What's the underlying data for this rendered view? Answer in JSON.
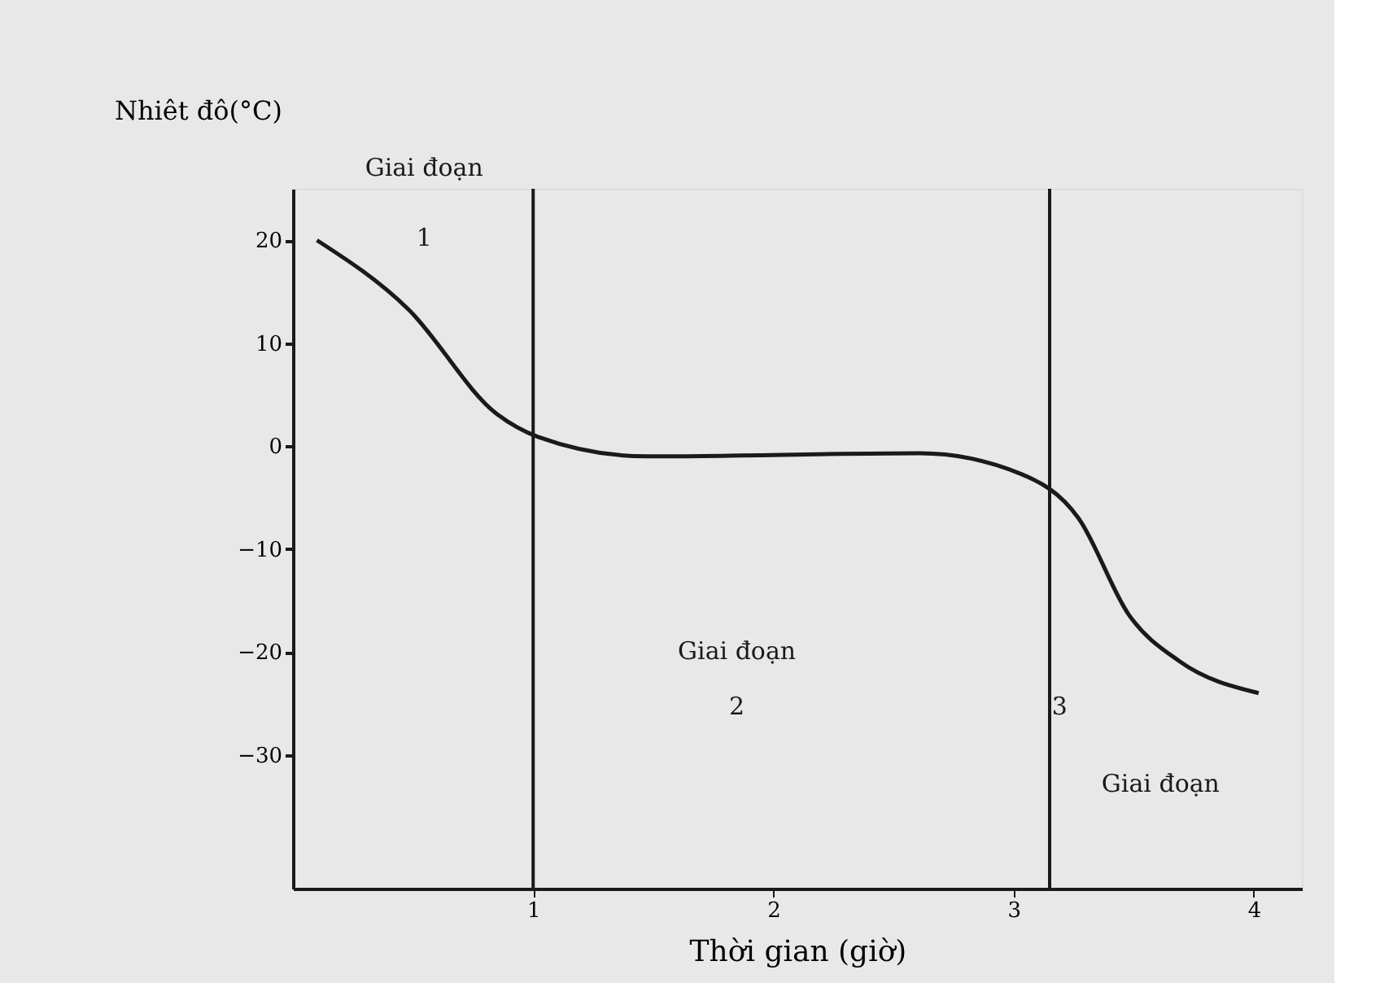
{
  "chart_data": {
    "type": "line",
    "ylabel": "Nhiêt đô(°C)",
    "xlabel": "Thời gian (giờ)",
    "x": [
      0.1,
      0.48,
      0.85,
      1.02,
      1.47,
      2.61,
      3.03,
      3.27,
      3.48,
      3.69,
      4.02
    ],
    "series": [
      {
        "color": "#1a1a1a",
        "values": [
          20,
          13.3,
          3.1,
          0.9,
          -1,
          -0.7,
          -2.7,
          -7,
          -16.4,
          -20.9,
          -24
        ]
      }
    ],
    "xlim": [
      0,
      4.2
    ],
    "ylim": [
      -43,
      25
    ],
    "xticks": [
      1,
      2,
      3,
      4
    ],
    "yticks": [
      20,
      10,
      0,
      -10,
      -20,
      -30
    ],
    "grid": false,
    "line_style": "solid",
    "marker": "none",
    "ref_lines": [
      {
        "axis": "x",
        "value": 1,
        "color": "#1a1a1a"
      },
      {
        "axis": "x",
        "value": 3.15,
        "color": "#1a1a1a"
      }
    ],
    "annotations": [
      "Giai đoạn",
      "1",
      "Giai đoạn",
      "2",
      "Giai đoạn",
      "3"
    ]
  }
}
